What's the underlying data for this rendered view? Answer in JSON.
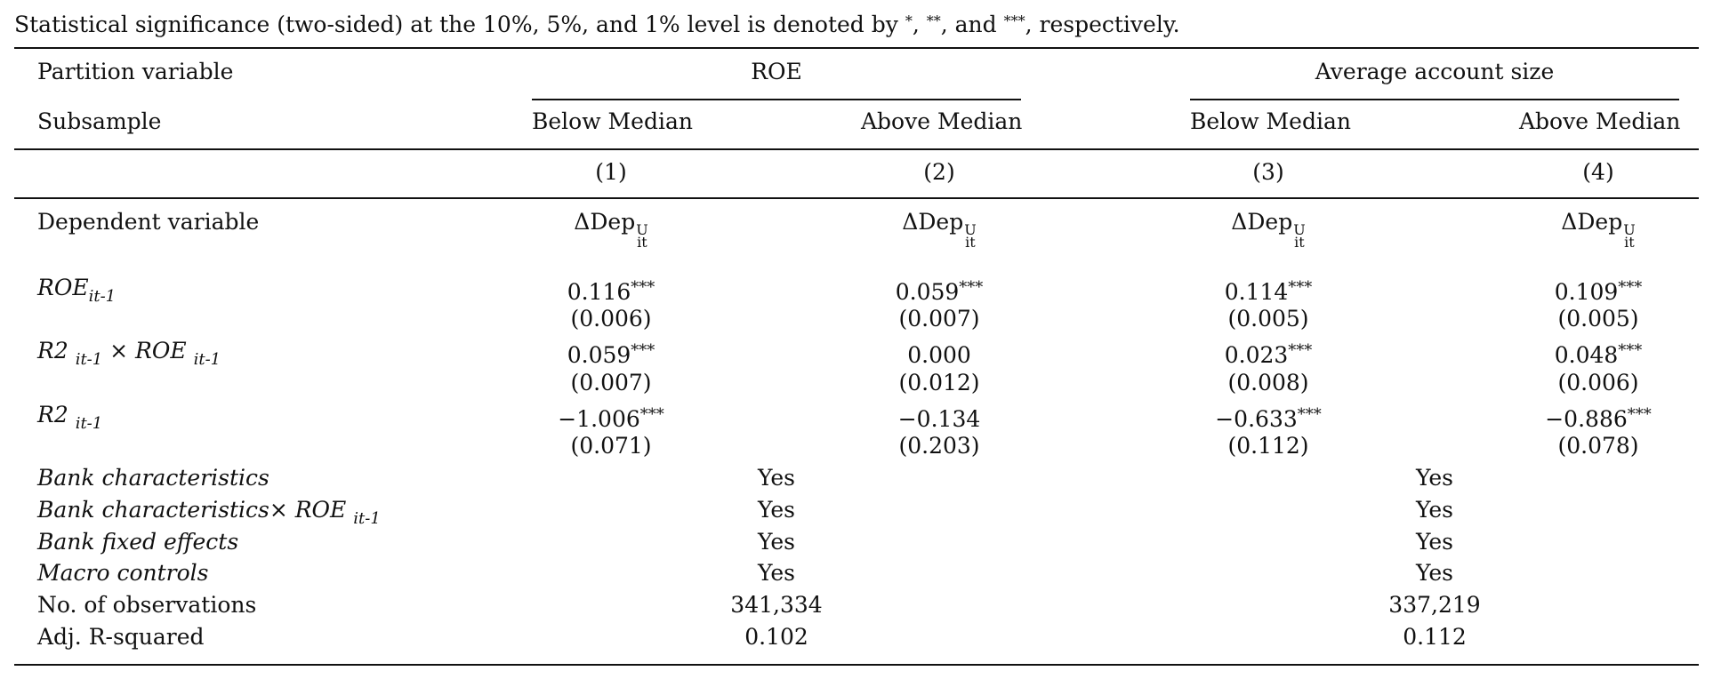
{
  "note": {
    "text": "Statistical significance (two-sided) at the 10%, 5%, and 1% level is denoted by ",
    "s1": "*",
    "sep1": ", ",
    "s2": "**",
    "sep2": ", and ",
    "s3": "***",
    "tail": ", respectively."
  },
  "header": {
    "partition_label": "Partition variable",
    "subsample_label": "Subsample",
    "group1": "ROE",
    "group2": "Average account size",
    "sub_labels": [
      "Below Median",
      "Above Median",
      "Below Median",
      "Above Median"
    ],
    "col_numbers": [
      "(1)",
      "(2)",
      "(3)",
      "(4)"
    ]
  },
  "dependent": {
    "label": "Dependent variable",
    "symbol": "ΔDep",
    "sup": "U",
    "sub": "it"
  },
  "rows": [
    {
      "label": "ROE",
      "label_sub": "it-1",
      "label_mid": "",
      "label_sub2": "",
      "coefs": [
        {
          "v": "0.116",
          "s": "***"
        },
        {
          "v": "0.059",
          "s": "***"
        },
        {
          "v": "0.114",
          "s": "***"
        },
        {
          "v": "0.109",
          "s": "***"
        }
      ],
      "ses": [
        "(0.006)",
        "(0.007)",
        "(0.005)",
        "(0.005)"
      ]
    },
    {
      "label": "R2 ",
      "label_sub": "it-1",
      "label_mid": " × ROE ",
      "label_sub2": "it-1",
      "coefs": [
        {
          "v": "0.059",
          "s": "***"
        },
        {
          "v": "0.000",
          "s": ""
        },
        {
          "v": "0.023",
          "s": "***"
        },
        {
          "v": "0.048",
          "s": "***"
        }
      ],
      "ses": [
        "(0.007)",
        "(0.012)",
        "(0.008)",
        "(0.006)"
      ]
    },
    {
      "label": "R2 ",
      "label_sub": "it-1",
      "label_mid": "",
      "label_sub2": "",
      "coefs": [
        {
          "v": "−1.006",
          "s": "***"
        },
        {
          "v": "−0.134",
          "s": ""
        },
        {
          "v": "−0.633",
          "s": "***"
        },
        {
          "v": "−0.886",
          "s": "***"
        }
      ],
      "ses": [
        "(0.071)",
        "(0.203)",
        "(0.112)",
        "(0.078)"
      ]
    }
  ],
  "controls": [
    {
      "label": "Bank characteristics",
      "label_extra": "",
      "label_sub": "",
      "italic": true,
      "g1": "Yes",
      "g2": "Yes"
    },
    {
      "label": "Bank characteristics",
      "label_extra": "× ROE ",
      "label_sub": "it-1",
      "italic": true,
      "g1": "Yes",
      "g2": "Yes"
    },
    {
      "label": "Bank fixed effects",
      "label_extra": "",
      "label_sub": "",
      "italic": true,
      "g1": "Yes",
      "g2": "Yes"
    },
    {
      "label": "Macro controls",
      "label_extra": "",
      "label_sub": "",
      "italic": true,
      "g1": "Yes",
      "g2": "Yes"
    },
    {
      "label": "No. of observations",
      "label_extra": "",
      "label_sub": "",
      "italic": false,
      "g1": "341,334",
      "g2": "337,219"
    },
    {
      "label": "Adj. R-squared",
      "label_extra": "",
      "label_sub": "",
      "italic": false,
      "g1": "0.102",
      "g2": "0.112"
    }
  ]
}
